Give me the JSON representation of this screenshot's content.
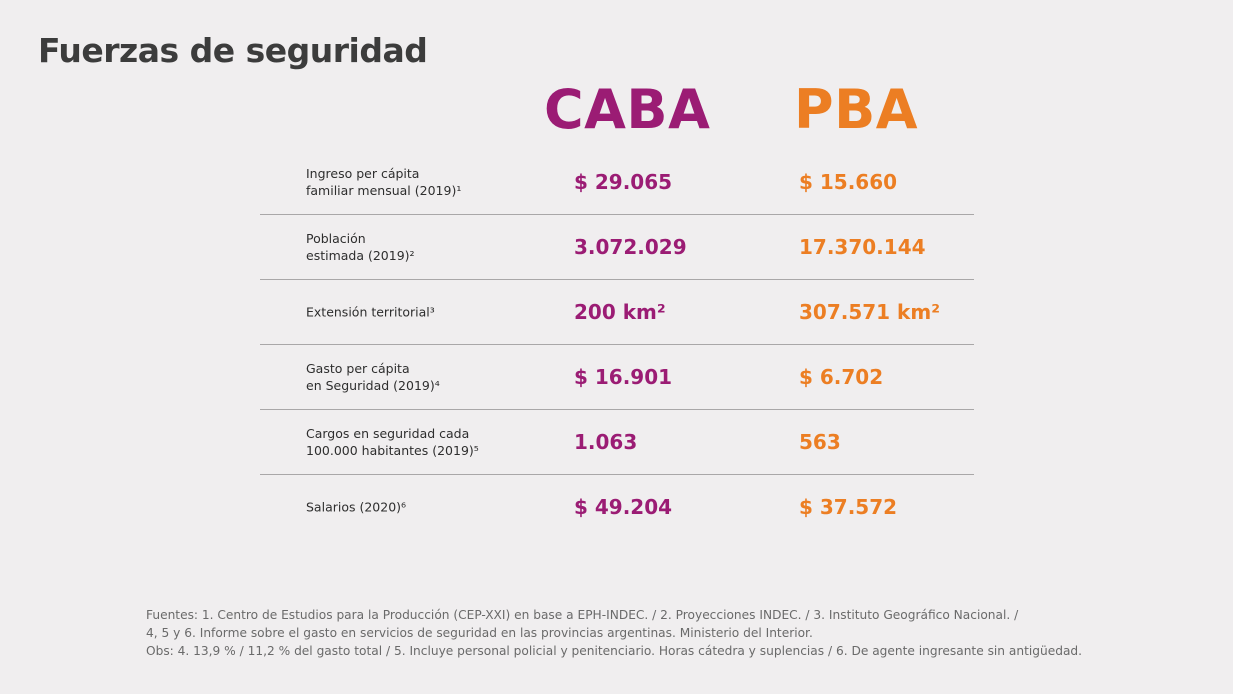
{
  "title": "Fuerzas de seguridad",
  "colors": {
    "caba": "#9b1c74",
    "pba": "#ec7e23"
  },
  "columns": {
    "caba": "CABA",
    "pba": "PBA"
  },
  "rows": [
    {
      "label": [
        "Ingreso per cápita",
        "familiar mensual (2019)¹"
      ],
      "caba": "$ 29.065",
      "pba": "$ 15.660"
    },
    {
      "label": [
        "Población",
        "estimada (2019)²"
      ],
      "caba": "3.072.029",
      "pba": "17.370.144"
    },
    {
      "label": [
        "Extensión territorial³"
      ],
      "caba": "200 km²",
      "pba": "307.571 km²"
    },
    {
      "label": [
        "Gasto per cápita",
        "en Seguridad (2019)⁴"
      ],
      "caba": "$ 16.901",
      "pba": "$ 6.702"
    },
    {
      "label": [
        "Cargos en seguridad cada",
        "100.000 habitantes (2019)⁵"
      ],
      "caba": "1.063",
      "pba": "563"
    },
    {
      "label": [
        "Salarios (2020)⁶"
      ],
      "caba": "$ 49.204",
      "pba": "$ 37.572"
    }
  ],
  "footer": [
    "Fuentes: 1. Centro de Estudios para la Producción (CEP-XXI) en base a EPH-INDEC. / 2. Proyecciones INDEC. / 3. Instituto Geográfico Nacional. /",
    "4, 5 y 6. Informe sobre el gasto en servicios de seguridad en las provincias argentinas. Ministerio del Interior.",
    "Obs: 4. 13,9 % / 11,2 % del gasto total / 5. Incluye personal policial y penitenciario. Horas cátedra y suplencias / 6. De agente ingresante sin antigüedad."
  ]
}
